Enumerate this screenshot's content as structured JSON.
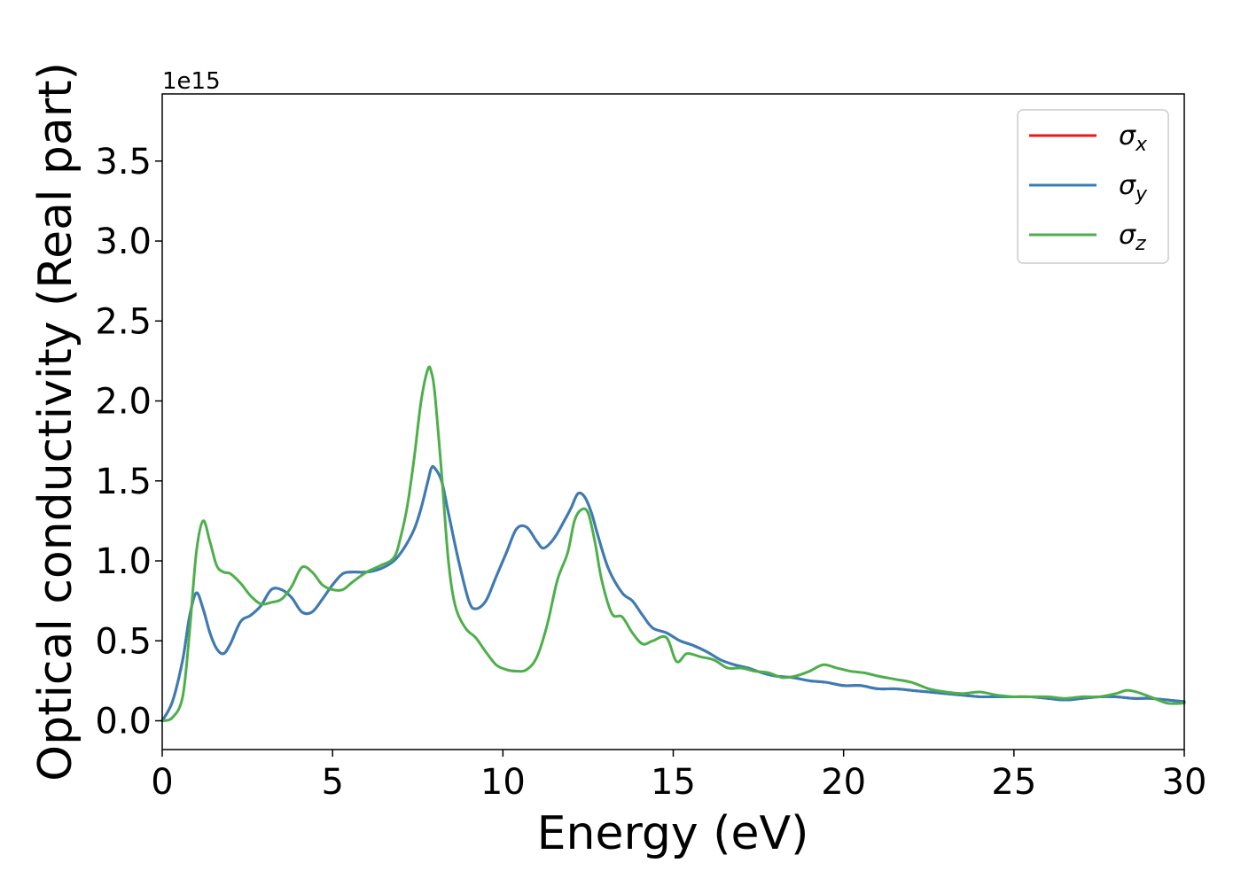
{
  "chart_data": {
    "type": "line",
    "xlabel": "Energy (eV)",
    "ylabel": "Optical conductivity (Real part)",
    "y_offset_text": "1e15",
    "xlim": [
      0,
      30
    ],
    "ylim": [
      -0.18,
      3.92
    ],
    "x_ticks": [
      0,
      5,
      10,
      15,
      20,
      25,
      30
    ],
    "x_tick_labels": [
      "0",
      "5",
      "10",
      "15",
      "20",
      "25",
      "30"
    ],
    "y_ticks": [
      0.0,
      0.5,
      1.0,
      1.5,
      2.0,
      2.5,
      3.0,
      3.5
    ],
    "y_tick_labels": [
      "0.0",
      "0.5",
      "1.0",
      "1.5",
      "2.0",
      "2.5",
      "3.0",
      "3.5"
    ],
    "grid": false,
    "legend_position": "top-right",
    "series": [
      {
        "name": "σx",
        "symbol": "σ",
        "subscript": "x",
        "color": "#e41a1c",
        "x": [
          0,
          0.3,
          0.6,
          0.8,
          1.0,
          1.2,
          1.4,
          1.6,
          1.8,
          2.0,
          2.3,
          2.6,
          2.9,
          3.2,
          3.5,
          3.8,
          4.1,
          4.4,
          4.7,
          5.0,
          5.3,
          5.6,
          6.0,
          6.4,
          6.8,
          7.1,
          7.4,
          7.6,
          7.8,
          7.9,
          8.0,
          8.2,
          8.4,
          8.7,
          9.0,
          9.2,
          9.5,
          9.8,
          10.1,
          10.4,
          10.7,
          11.0,
          11.2,
          11.5,
          11.8,
          12.0,
          12.2,
          12.4,
          12.6,
          12.8,
          13.1,
          13.5,
          13.8,
          14.1,
          14.4,
          14.8,
          15.2,
          15.6,
          16.0,
          16.4,
          16.8,
          17.2,
          17.6,
          18.0,
          18.5,
          19.0,
          19.5,
          20.0,
          20.5,
          21.0,
          21.5,
          22.0,
          22.5,
          23.0,
          23.5,
          24.0,
          24.5,
          25.0,
          25.5,
          26.0,
          26.5,
          27.0,
          27.5,
          28.0,
          28.5,
          29.0,
          29.5,
          30.0
        ],
        "y": [
          0.0,
          0.12,
          0.38,
          0.65,
          0.8,
          0.7,
          0.55,
          0.45,
          0.42,
          0.48,
          0.62,
          0.66,
          0.72,
          0.82,
          0.82,
          0.77,
          0.68,
          0.68,
          0.76,
          0.85,
          0.92,
          0.93,
          0.93,
          0.95,
          1.0,
          1.08,
          1.2,
          1.33,
          1.5,
          1.58,
          1.58,
          1.5,
          1.3,
          1.0,
          0.75,
          0.7,
          0.75,
          0.9,
          1.05,
          1.2,
          1.21,
          1.12,
          1.08,
          1.14,
          1.25,
          1.33,
          1.42,
          1.4,
          1.3,
          1.15,
          0.95,
          0.8,
          0.75,
          0.66,
          0.58,
          0.55,
          0.5,
          0.47,
          0.43,
          0.38,
          0.35,
          0.33,
          0.3,
          0.28,
          0.27,
          0.25,
          0.24,
          0.22,
          0.22,
          0.2,
          0.2,
          0.19,
          0.18,
          0.17,
          0.16,
          0.15,
          0.15,
          0.15,
          0.15,
          0.14,
          0.13,
          0.14,
          0.15,
          0.15,
          0.14,
          0.14,
          0.13,
          0.12
        ]
      },
      {
        "name": "σy",
        "symbol": "σ",
        "subscript": "y",
        "color": "#377eb8",
        "x": [
          0,
          0.3,
          0.6,
          0.8,
          1.0,
          1.2,
          1.4,
          1.6,
          1.8,
          2.0,
          2.3,
          2.6,
          2.9,
          3.2,
          3.5,
          3.8,
          4.1,
          4.4,
          4.7,
          5.0,
          5.3,
          5.6,
          6.0,
          6.4,
          6.8,
          7.1,
          7.4,
          7.6,
          7.8,
          7.9,
          8.0,
          8.2,
          8.4,
          8.7,
          9.0,
          9.2,
          9.5,
          9.8,
          10.1,
          10.4,
          10.7,
          11.0,
          11.2,
          11.5,
          11.8,
          12.0,
          12.2,
          12.4,
          12.6,
          12.8,
          13.1,
          13.5,
          13.8,
          14.1,
          14.4,
          14.8,
          15.2,
          15.6,
          16.0,
          16.4,
          16.8,
          17.2,
          17.6,
          18.0,
          18.5,
          19.0,
          19.5,
          20.0,
          20.5,
          21.0,
          21.5,
          22.0,
          22.5,
          23.0,
          23.5,
          24.0,
          24.5,
          25.0,
          25.5,
          26.0,
          26.5,
          27.0,
          27.5,
          28.0,
          28.5,
          29.0,
          29.5,
          30.0
        ],
        "y": [
          0.0,
          0.12,
          0.38,
          0.65,
          0.8,
          0.7,
          0.55,
          0.45,
          0.42,
          0.48,
          0.62,
          0.66,
          0.72,
          0.82,
          0.82,
          0.77,
          0.68,
          0.68,
          0.76,
          0.85,
          0.92,
          0.93,
          0.93,
          0.95,
          1.0,
          1.08,
          1.2,
          1.33,
          1.5,
          1.58,
          1.58,
          1.5,
          1.3,
          1.0,
          0.75,
          0.7,
          0.75,
          0.9,
          1.05,
          1.2,
          1.21,
          1.12,
          1.08,
          1.14,
          1.25,
          1.33,
          1.42,
          1.4,
          1.3,
          1.15,
          0.95,
          0.8,
          0.75,
          0.66,
          0.58,
          0.55,
          0.5,
          0.47,
          0.43,
          0.38,
          0.35,
          0.33,
          0.3,
          0.28,
          0.27,
          0.25,
          0.24,
          0.22,
          0.22,
          0.2,
          0.2,
          0.19,
          0.18,
          0.17,
          0.16,
          0.15,
          0.15,
          0.15,
          0.15,
          0.14,
          0.13,
          0.14,
          0.15,
          0.15,
          0.14,
          0.14,
          0.13,
          0.12
        ]
      },
      {
        "name": "σz",
        "symbol": "σ",
        "subscript": "z",
        "color": "#4daf4a",
        "x": [
          0,
          0.3,
          0.6,
          0.8,
          1.0,
          1.2,
          1.4,
          1.6,
          1.8,
          2.0,
          2.3,
          2.6,
          2.9,
          3.2,
          3.5,
          3.8,
          4.1,
          4.4,
          4.7,
          5.0,
          5.3,
          5.6,
          6.0,
          6.4,
          6.8,
          7.0,
          7.2,
          7.4,
          7.6,
          7.8,
          7.9,
          8.0,
          8.2,
          8.4,
          8.6,
          8.9,
          9.2,
          9.5,
          9.8,
          10.1,
          10.4,
          10.7,
          11.0,
          11.3,
          11.6,
          11.9,
          12.1,
          12.3,
          12.5,
          12.7,
          12.9,
          13.2,
          13.5,
          13.8,
          14.1,
          14.4,
          14.8,
          15.1,
          15.4,
          15.8,
          16.2,
          16.6,
          17.0,
          17.4,
          17.8,
          18.2,
          18.6,
          19.0,
          19.4,
          19.8,
          20.2,
          20.6,
          21.0,
          21.5,
          22.0,
          22.5,
          23.0,
          23.5,
          24.0,
          24.5,
          25.0,
          25.5,
          26.0,
          26.5,
          27.0,
          27.5,
          28.0,
          28.3,
          28.6,
          29.0,
          29.5,
          30.0
        ],
        "y": [
          0.0,
          0.02,
          0.15,
          0.55,
          1.05,
          1.25,
          1.12,
          0.97,
          0.93,
          0.92,
          0.86,
          0.78,
          0.73,
          0.74,
          0.76,
          0.84,
          0.96,
          0.93,
          0.85,
          0.82,
          0.82,
          0.87,
          0.93,
          0.97,
          1.02,
          1.15,
          1.35,
          1.65,
          2.0,
          2.2,
          2.18,
          2.05,
          1.55,
          1.0,
          0.72,
          0.58,
          0.52,
          0.43,
          0.35,
          0.32,
          0.31,
          0.32,
          0.4,
          0.6,
          0.88,
          1.05,
          1.25,
          1.32,
          1.3,
          1.12,
          0.88,
          0.67,
          0.65,
          0.55,
          0.48,
          0.5,
          0.52,
          0.37,
          0.42,
          0.4,
          0.38,
          0.33,
          0.33,
          0.31,
          0.3,
          0.27,
          0.28,
          0.31,
          0.35,
          0.33,
          0.31,
          0.3,
          0.28,
          0.26,
          0.24,
          0.2,
          0.18,
          0.17,
          0.18,
          0.16,
          0.15,
          0.15,
          0.15,
          0.14,
          0.15,
          0.15,
          0.17,
          0.19,
          0.18,
          0.15,
          0.11,
          0.11
        ]
      }
    ]
  }
}
